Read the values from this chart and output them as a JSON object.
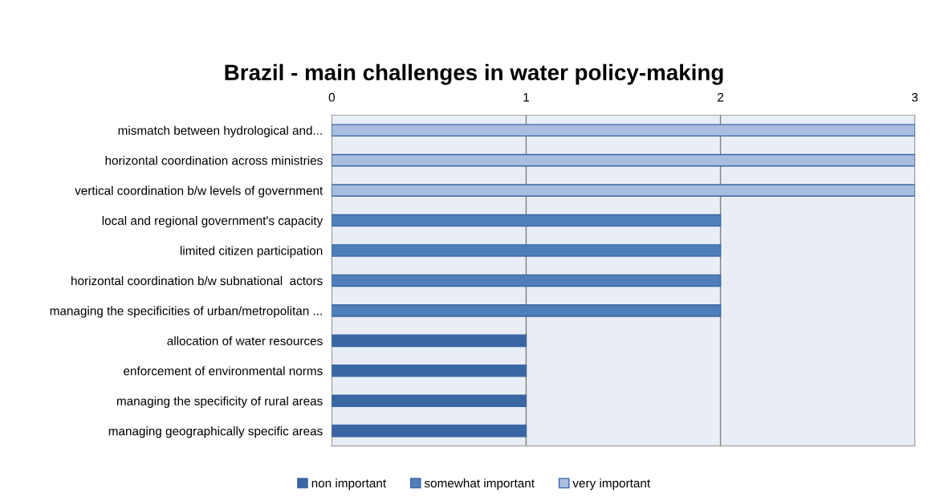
{
  "chart_data": {
    "type": "bar",
    "orientation": "horizontal",
    "title": "Brazil - main challenges in water policy-making",
    "categories": [
      "mismatch between hydrological and...",
      "horizontal coordination across ministries",
      "vertical coordination b/w levels of government",
      "local and regional government's capacity",
      "limited citizen participation",
      "horizontal coordination b/w subnational  actors",
      "managing the specificities of urban/metropolitan ...",
      "allocation of water resources",
      "enforcement of environmental norms",
      "managing the specificity of rural areas",
      "managing geographically specific areas"
    ],
    "series": [
      {
        "name": "non important",
        "color": "#3a67a3",
        "values": [
          null,
          null,
          null,
          null,
          null,
          null,
          null,
          1,
          1,
          1,
          1
        ]
      },
      {
        "name": "somewhat important",
        "color": "#4f7fbb",
        "values": [
          null,
          null,
          null,
          2,
          2,
          2,
          2,
          null,
          null,
          null,
          null
        ]
      },
      {
        "name": "very important",
        "color": "#a8bde0",
        "values": [
          3,
          3,
          3,
          null,
          null,
          null,
          null,
          null,
          null,
          null,
          null
        ]
      }
    ],
    "xlim": [
      0,
      3
    ],
    "xticks": [
      0,
      1,
      2,
      3
    ],
    "grid": "x",
    "legend": "bottom"
  }
}
